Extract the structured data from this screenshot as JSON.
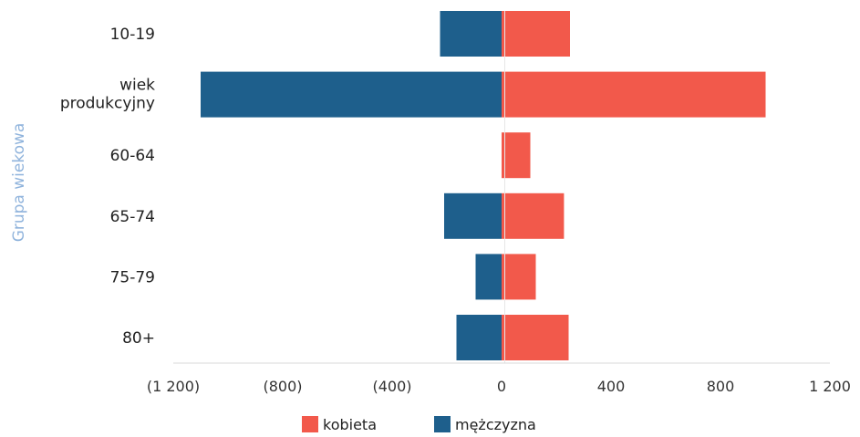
{
  "chart_data": {
    "type": "bar",
    "orientation": "horizontal",
    "ylabel": "Grupa wiekowa",
    "categories": [
      "10-19",
      "wiek produkcyjny",
      "60-64",
      "65-74",
      "75-79",
      "80+"
    ],
    "category_lines": [
      [
        "10-19"
      ],
      [
        "wiek",
        "produkcyjny"
      ],
      [
        "60-64"
      ],
      [
        "65-74"
      ],
      [
        "75-79"
      ],
      [
        "80+"
      ]
    ],
    "series": [
      {
        "name": "kobieta",
        "values": [
          250,
          965,
          105,
          228,
          125,
          245
        ]
      },
      {
        "name": "mężczyzna",
        "values": [
          -225,
          -1100,
          0,
          -210,
          -95,
          -165
        ]
      }
    ],
    "xlim": [
      -1200,
      1200
    ],
    "x_ticks": [
      -1200,
      -800,
      -400,
      0,
      400,
      800,
      1200
    ],
    "x_tick_labels": [
      "(1 200)",
      "(800)",
      "(400)",
      "0",
      "400",
      "800",
      "1 200"
    ],
    "grid": false,
    "legend_position": "bottom-center"
  },
  "colors": {
    "kobieta": "#f2594b",
    "mezczyzna": "#1e5f8c",
    "ylabel": "#8fb3dc",
    "axis": "#d9d9d9"
  }
}
